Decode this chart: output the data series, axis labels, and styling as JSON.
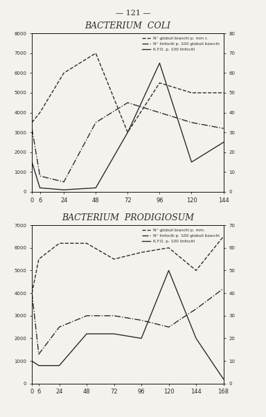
{
  "page_number": "— 121 —",
  "chart1": {
    "title": "BACTERIUM  COLI",
    "x": [
      0,
      6,
      24,
      48,
      72,
      96,
      120,
      144
    ],
    "line1": {
      "label": "N° globuli bianchi p. mm c.",
      "style": "--",
      "values": [
        3500,
        4000,
        6000,
        7000,
        3000,
        5500,
        5000,
        5000
      ]
    },
    "line2": {
      "label": "N° linfociti p. 100 globuli bianchi",
      "style": "-.",
      "values": [
        3200,
        800,
        500,
        3500,
        4500,
        4000,
        3500,
        3200
      ]
    },
    "line3": {
      "label": "K.F.D. p. 100 linfociti",
      "style": "-",
      "values": [
        1500,
        200,
        100,
        200,
        3000,
        6500,
        1500,
        2500
      ]
    },
    "ylim_left": [
      0,
      8000
    ],
    "ylim_right": [
      0,
      80
    ],
    "yticks_left": [
      0,
      1000,
      2000,
      3000,
      4000,
      5000,
      6000,
      7000,
      8000
    ],
    "yticks_right": [
      0,
      10,
      20,
      30,
      40,
      50,
      60,
      70,
      80
    ]
  },
  "chart2": {
    "title": "BACTERIUM  PRODIGIOSUM",
    "x": [
      0,
      6,
      24,
      48,
      72,
      96,
      120,
      144,
      168
    ],
    "line1": {
      "label": "N° globuli bianchi p. mm.",
      "style": "--",
      "values": [
        4000,
        5500,
        6200,
        6200,
        5500,
        5800,
        6000,
        5000,
        6500
      ]
    },
    "line2": {
      "label": "N° linfociti p. 100 globuli bianchi",
      "style": "-.",
      "values": [
        4000,
        1300,
        2500,
        3000,
        3000,
        2800,
        2500,
        3300,
        4200
      ]
    },
    "line3": {
      "label": "K.F.D. p. 100 linfociti",
      "style": "-",
      "values": [
        1000,
        800,
        800,
        2200,
        2200,
        2000,
        5000,
        2000,
        200
      ]
    },
    "ylim_left": [
      0,
      7000
    ],
    "ylim_right": [
      0,
      70
    ],
    "yticks_left": [
      0,
      1000,
      2000,
      3000,
      4000,
      5000,
      6000,
      7000
    ],
    "yticks_right": [
      0,
      10,
      20,
      30,
      40,
      50,
      60,
      70
    ]
  },
  "bg_color": "#f5f2ee",
  "line_color": "#2a2a2a",
  "font_color": "#2a2a2a"
}
